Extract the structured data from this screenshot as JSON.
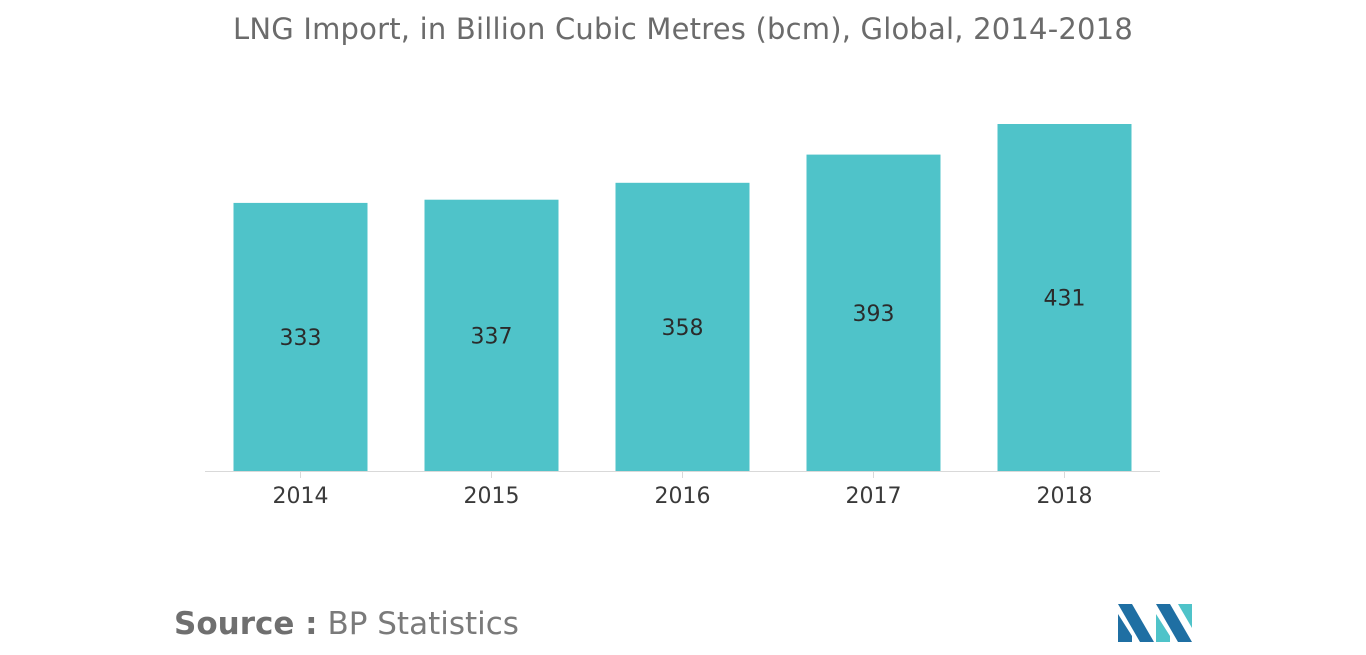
{
  "chart_data": {
    "type": "bar",
    "title": "LNG Import, in Billion Cubic Metres (bcm), Global, 2014-2018",
    "categories": [
      "2014",
      "2015",
      "2016",
      "2017",
      "2018"
    ],
    "values": [
      333,
      337,
      358,
      393,
      431
    ],
    "data_labels": [
      "333",
      "337",
      "358",
      "393",
      "431"
    ],
    "xlabel": "",
    "ylabel": "",
    "ylim": [
      0,
      431
    ],
    "grid": false,
    "legend": "none",
    "bar_color": "#4fc3c9"
  },
  "source": {
    "label": "Source :",
    "value": "BP Statistics"
  },
  "logo": {
    "icon": "mordor-intelligence-logo-icon",
    "colors": [
      "#1f6fa3",
      "#4fc3c9"
    ]
  }
}
